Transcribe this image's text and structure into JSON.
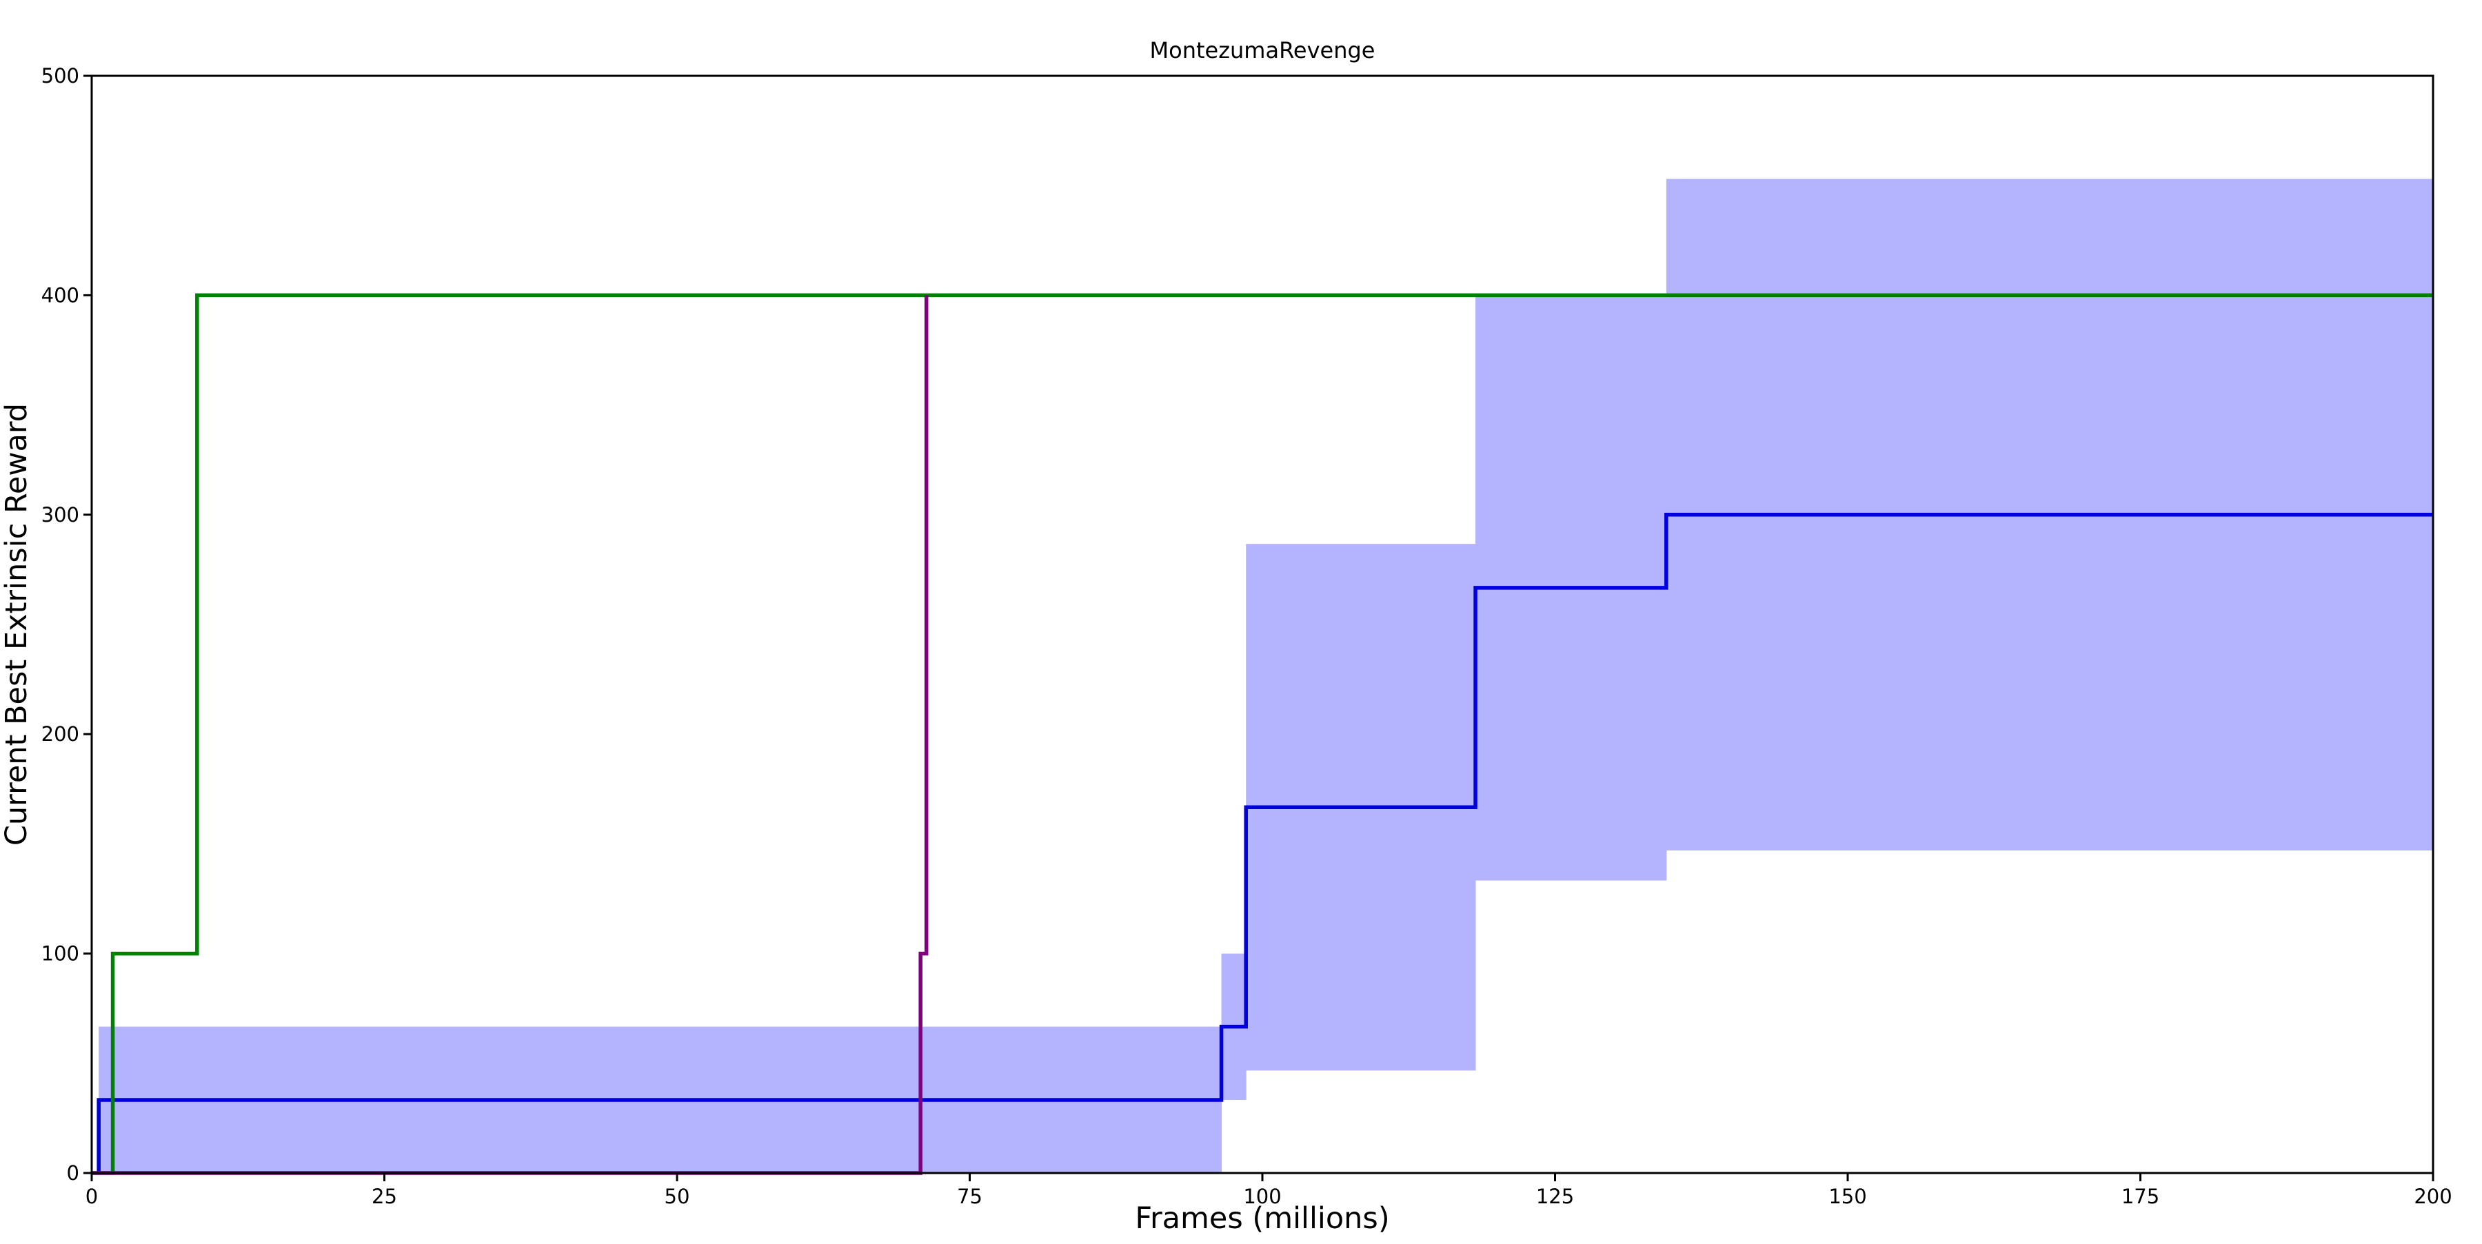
{
  "chart_data": {
    "type": "line",
    "title": "MontezumaRevenge",
    "xlabel": "Frames (millions)",
    "ylabel": "Current Best Extrinsic Reward",
    "xlim": [
      0,
      200
    ],
    "ylim": [
      0,
      500
    ],
    "x_ticks": [
      0,
      25,
      50,
      75,
      100,
      125,
      150,
      175,
      200
    ],
    "y_ticks": [
      0,
      100,
      200,
      300,
      400,
      500
    ],
    "grid": false,
    "legend": "none",
    "line_style": "step",
    "series": [
      {
        "color": "#0000dd",
        "points": [
          [
            0.6,
            0
          ],
          [
            0.6,
            33.3
          ],
          [
            96.5,
            33.3
          ],
          [
            96.5,
            66.7
          ],
          [
            98.6,
            66.7
          ],
          [
            98.6,
            166.7
          ],
          [
            118.2,
            166.7
          ],
          [
            118.2,
            266.7
          ],
          [
            134.5,
            266.7
          ],
          [
            134.5,
            300
          ],
          [
            200,
            300
          ]
        ],
        "band": [
          {
            "x0": 0.6,
            "x1": 96.5,
            "lower": 0,
            "upper": 66.7
          },
          {
            "x0": 96.5,
            "x1": 98.6,
            "lower": 33.3,
            "upper": 100
          },
          {
            "x0": 98.6,
            "x1": 118.2,
            "lower": 46.7,
            "upper": 286.7
          },
          {
            "x0": 118.2,
            "x1": 134.5,
            "lower": 133.3,
            "upper": 400
          },
          {
            "x0": 134.5,
            "x1": 200,
            "lower": 147,
            "upper": 453
          }
        ],
        "band_color": "#b3b3fe"
      },
      {
        "color": "#008000",
        "points": [
          [
            0,
            0
          ],
          [
            1.8,
            0
          ],
          [
            1.8,
            100
          ],
          [
            9.0,
            100
          ],
          [
            9.0,
            400
          ],
          [
            200,
            400
          ]
        ]
      },
      {
        "color": "#800080",
        "points": [
          [
            0,
            0
          ],
          [
            70.8,
            0
          ],
          [
            70.8,
            100
          ],
          [
            71.3,
            100
          ],
          [
            71.3,
            400
          ]
        ]
      }
    ]
  }
}
